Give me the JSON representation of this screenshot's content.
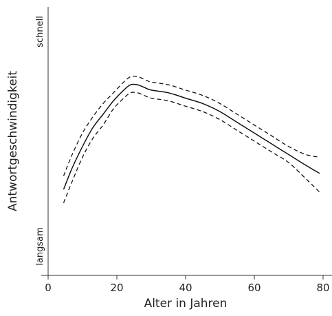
{
  "chart_data": {
    "type": "line",
    "title": "",
    "xlabel": "Alter in Jahren",
    "ylabel": "Antwortgeschwindigkeit",
    "y_top_label": "schnell",
    "y_bottom_label": "langsam",
    "x_ticks": [
      "0",
      "20",
      "40",
      "60",
      "80"
    ],
    "xlim": [
      0,
      80
    ],
    "ylim": [
      0,
      100
    ],
    "grid": false,
    "legend": "none",
    "series": [
      {
        "style": "solid",
        "x": [
          4.5,
          7,
          10,
          13,
          16,
          19,
          22,
          24,
          26,
          28,
          30,
          35,
          40,
          45,
          50,
          55,
          60,
          65,
          70,
          75,
          79
        ],
        "values": [
          32,
          40,
          48,
          55,
          60,
          65,
          69,
          71,
          71,
          70,
          69,
          68,
          66,
          64,
          61,
          57,
          53,
          49,
          45,
          41,
          38
        ]
      },
      {
        "style": "dashed",
        "x": [
          4.5,
          7,
          10,
          13,
          16,
          19,
          22,
          24,
          26,
          28,
          30,
          35,
          40,
          45,
          50,
          55,
          60,
          65,
          70,
          75,
          79
        ],
        "values": [
          37,
          45,
          53,
          59,
          64,
          68,
          72,
          74,
          74,
          73,
          72,
          71,
          69,
          67,
          64,
          60,
          56,
          52,
          48,
          45,
          44
        ]
      },
      {
        "style": "dashed",
        "x": [
          4.5,
          7,
          10,
          13,
          16,
          19,
          22,
          24,
          26,
          28,
          30,
          35,
          40,
          45,
          50,
          55,
          60,
          65,
          70,
          75,
          79
        ],
        "values": [
          27,
          35,
          44,
          51,
          56,
          62,
          66,
          68,
          68,
          67,
          66,
          65,
          63,
          61,
          58,
          54,
          50,
          46,
          42,
          36,
          31
        ]
      }
    ]
  }
}
